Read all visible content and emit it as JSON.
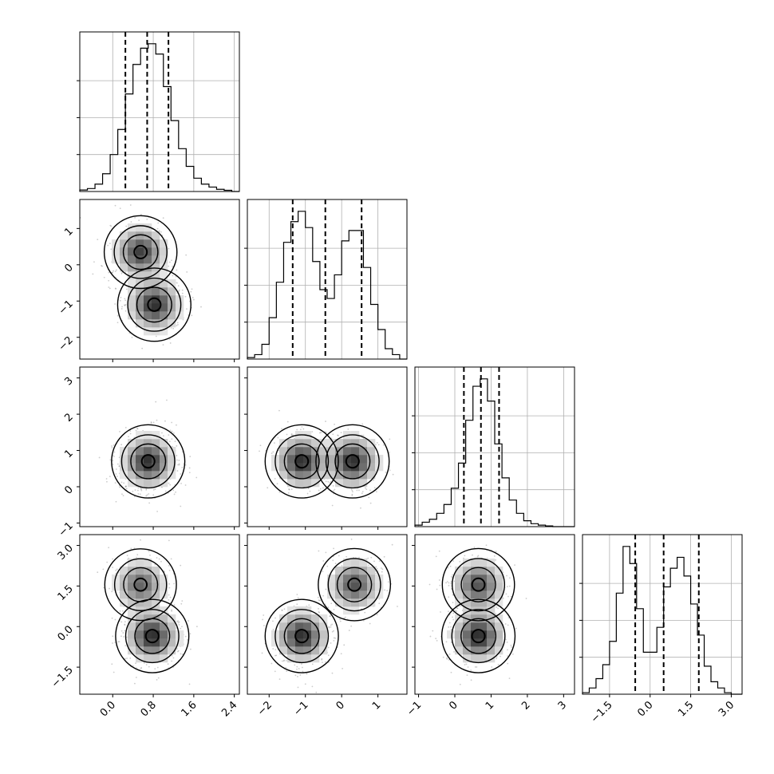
{
  "chart_data": {
    "type": "corner",
    "parameters": [
      {
        "name": "",
        "range": [
          -0.65,
          2.5
        ],
        "ticks": [
          0.0,
          0.8,
          1.6,
          2.4
        ],
        "tick_labels": [
          "0.0",
          "0.8",
          "1.6",
          "2.4"
        ],
        "quantiles": [
          0.25,
          0.68,
          1.1
        ],
        "histogram": {
          "edges": [
            -0.65,
            -0.5,
            -0.35,
            -0.2,
            -0.05,
            0.1,
            0.25,
            0.4,
            0.55,
            0.7,
            0.85,
            1.0,
            1.15,
            1.3,
            1.45,
            1.6,
            1.75,
            1.9,
            2.05,
            2.2,
            2.35,
            2.5
          ],
          "counts": [
            0.01,
            0.02,
            0.05,
            0.12,
            0.25,
            0.42,
            0.66,
            0.86,
            0.97,
            1.0,
            0.93,
            0.71,
            0.48,
            0.29,
            0.17,
            0.09,
            0.05,
            0.03,
            0.015,
            0.008,
            0.0
          ]
        }
      },
      {
        "name": "",
        "range": [
          -2.6,
          1.8
        ],
        "ticks": [
          -2,
          -1,
          0,
          1
        ],
        "tick_labels": [
          "−2",
          "−1",
          "0",
          "1"
        ],
        "quantiles": [
          -1.35,
          -0.45,
          0.55
        ],
        "histogram": {
          "edges": [
            -2.6,
            -2.4,
            -2.2,
            -2.0,
            -1.8,
            -1.6,
            -1.4,
            -1.2,
            -1.0,
            -0.8,
            -0.6,
            -0.4,
            -0.2,
            0.0,
            0.2,
            0.4,
            0.6,
            0.8,
            1.0,
            1.2,
            1.4,
            1.6,
            1.8
          ],
          "counts": [
            0.01,
            0.03,
            0.1,
            0.28,
            0.52,
            0.79,
            0.93,
            1.0,
            0.89,
            0.66,
            0.47,
            0.41,
            0.57,
            0.8,
            0.87,
            0.87,
            0.62,
            0.37,
            0.2,
            0.07,
            0.03,
            0.0
          ]
        }
      },
      {
        "name": "",
        "range": [
          -1.1,
          3.3
        ],
        "ticks": [
          -1,
          0,
          1,
          2,
          3
        ],
        "tick_labels": [
          "−1",
          "0",
          "1",
          "2",
          "3"
        ],
        "quantiles": [
          0.25,
          0.72,
          1.22
        ],
        "histogram": {
          "edges": [
            -1.1,
            -0.9,
            -0.7,
            -0.5,
            -0.3,
            -0.1,
            0.1,
            0.3,
            0.5,
            0.7,
            0.9,
            1.1,
            1.3,
            1.5,
            1.7,
            1.9,
            2.1,
            2.3,
            2.5,
            2.7,
            2.9,
            3.1,
            3.3
          ],
          "counts": [
            0.01,
            0.03,
            0.05,
            0.09,
            0.15,
            0.26,
            0.43,
            0.72,
            0.95,
            1.0,
            0.85,
            0.56,
            0.33,
            0.18,
            0.09,
            0.04,
            0.02,
            0.01,
            0.005,
            0.0,
            0.0,
            0.0
          ]
        }
      },
      {
        "name": "",
        "range": [
          -2.5,
          3.4
        ],
        "ticks": [
          -1.5,
          0.0,
          1.5,
          3.0
        ],
        "tick_labels": [
          "−1.5",
          "0.0",
          "1.5",
          "3.0"
        ],
        "quantiles": [
          -0.55,
          0.5,
          1.8
        ],
        "histogram": {
          "edges": [
            -2.5,
            -2.25,
            -2.0,
            -1.75,
            -1.5,
            -1.25,
            -1.0,
            -0.75,
            -0.5,
            -0.25,
            0.0,
            0.25,
            0.5,
            0.75,
            1.0,
            1.25,
            1.5,
            1.75,
            2.0,
            2.25,
            2.5,
            2.75,
            3.0,
            3.25,
            3.4
          ],
          "counts": [
            0.01,
            0.04,
            0.1,
            0.19,
            0.34,
            0.65,
            0.95,
            0.84,
            0.55,
            0.27,
            0.27,
            0.43,
            0.69,
            0.81,
            0.88,
            0.76,
            0.58,
            0.38,
            0.18,
            0.08,
            0.04,
            0.01,
            0.0,
            0.0
          ]
        }
      }
    ],
    "modes_2d": {
      "1_0": [
        {
          "x": 0.55,
          "y": 0.35,
          "w": 0.5
        },
        {
          "x": 0.82,
          "y": -1.1,
          "w": 0.55
        }
      ],
      "2_0": [
        {
          "x": 0.7,
          "y": 0.7,
          "w": 1.0
        }
      ],
      "2_1": [
        {
          "x": -1.1,
          "y": 0.7,
          "w": 0.5
        },
        {
          "x": 0.3,
          "y": 0.7,
          "w": 0.5
        }
      ],
      "3_0": [
        {
          "x": 0.55,
          "y": 1.55,
          "w": 0.42
        },
        {
          "x": 0.78,
          "y": -0.35,
          "w": 0.58
        }
      ],
      "3_1": [
        {
          "x": -1.1,
          "y": -0.35,
          "w": 0.55
        },
        {
          "x": 0.35,
          "y": 1.55,
          "w": 0.45
        }
      ],
      "3_2": [
        {
          "x": 0.65,
          "y": 1.55,
          "w": 0.45
        },
        {
          "x": 0.65,
          "y": -0.35,
          "w": 0.55
        }
      ]
    },
    "grid": true,
    "quantile_line_style": "dashed"
  }
}
